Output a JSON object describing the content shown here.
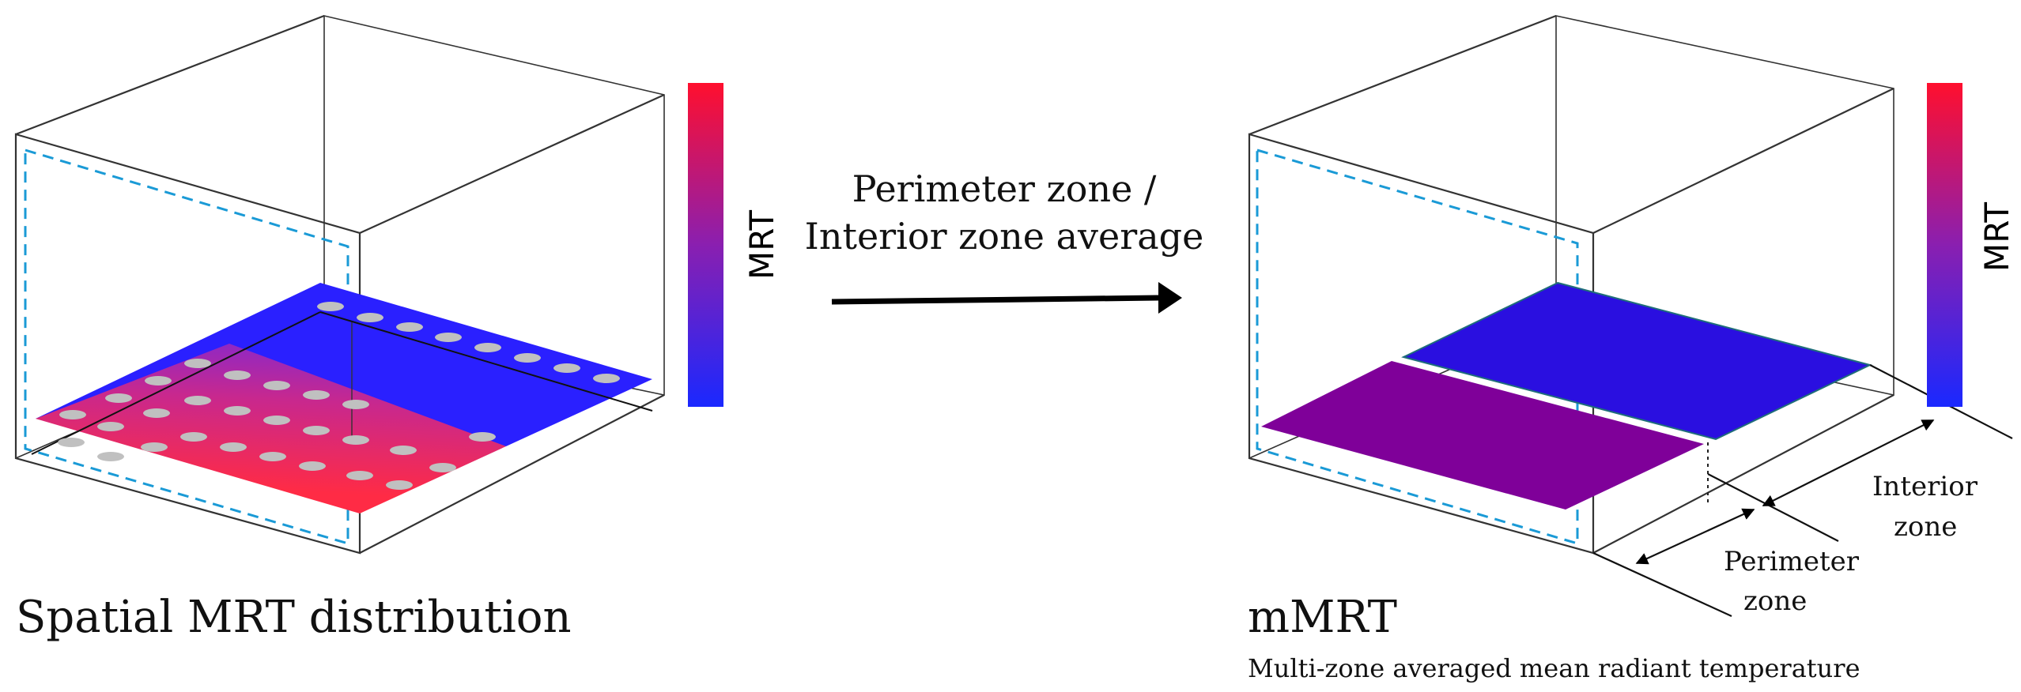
{
  "left_panel": {
    "caption": "Spatial MRT distribution",
    "colorbar_label": "MRT",
    "colors": {
      "low": "#2a20ff",
      "high": "#ff1f3c",
      "sensor": "#bdbdbd",
      "window_outline": "#1a9ad6"
    }
  },
  "transition": {
    "line1": "Perimeter zone /",
    "line2": "Interior zone average"
  },
  "right_panel": {
    "title": "mMRT",
    "subtitle": "Multi-zone averaged mean radiant temperature",
    "colorbar_label": "MRT",
    "interior_label_1": "Interior",
    "interior_label_2": "zone",
    "perimeter_label_1": "Perimeter",
    "perimeter_label_2": "zone",
    "colors": {
      "interior_zone": "#2a0fe0",
      "perimeter_zone": "#7f0099",
      "window_outline": "#1a9ad6"
    }
  }
}
